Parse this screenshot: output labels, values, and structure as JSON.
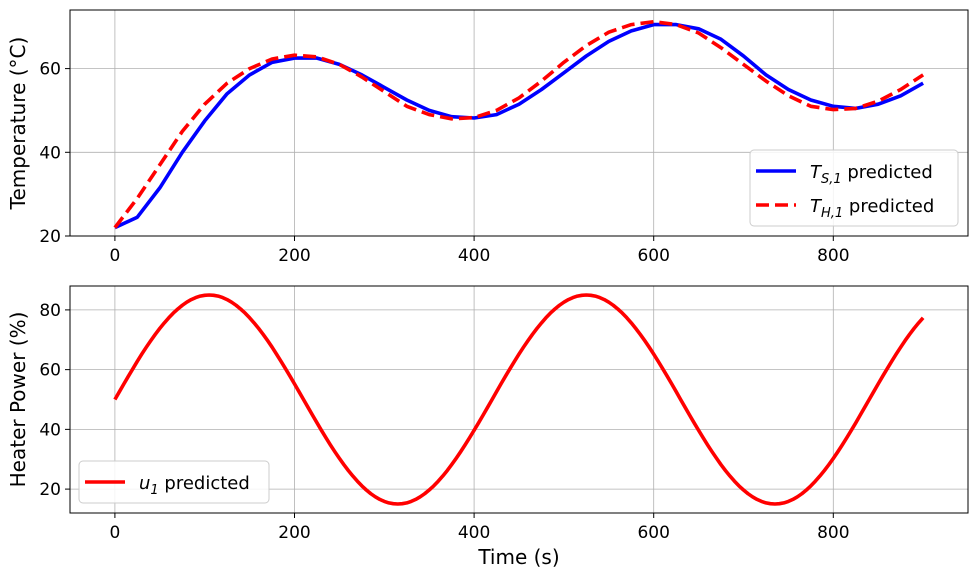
{
  "chart_data": [
    {
      "type": "line",
      "ylabel": "Temperature (°C)",
      "xlabel": "",
      "xlim": [
        -50,
        950
      ],
      "ylim": [
        20,
        74
      ],
      "xticks": [
        0,
        200,
        400,
        600,
        800
      ],
      "yticks": [
        20,
        40,
        60
      ],
      "grid": true,
      "legend_position": "lower-right",
      "series": [
        {
          "name_main": "T",
          "name_sub": "S,1",
          "name_rest": " predicted",
          "color": "#0000ff",
          "style": "solid",
          "x": [
            0,
            25,
            50,
            75,
            100,
            125,
            150,
            175,
            200,
            225,
            250,
            275,
            300,
            325,
            350,
            375,
            400,
            425,
            450,
            475,
            500,
            525,
            550,
            575,
            600,
            625,
            650,
            675,
            700,
            725,
            750,
            775,
            800,
            825,
            850,
            875,
            900
          ],
          "y": [
            22,
            24.5,
            31.5,
            40,
            47.5,
            54,
            58.5,
            61.5,
            62.5,
            62.5,
            61,
            58.5,
            55.5,
            52.5,
            50,
            48.5,
            48.2,
            49,
            51.5,
            55,
            59,
            63,
            66.5,
            69,
            70.5,
            70.5,
            69.5,
            67,
            63,
            58.5,
            55,
            52.5,
            51,
            50.5,
            51.5,
            53.5,
            56.5
          ]
        },
        {
          "name_main": "T",
          "name_sub": "H,1",
          "name_rest": " predicted",
          "color": "#ff0000",
          "style": "dashed",
          "x": [
            0,
            25,
            50,
            75,
            100,
            125,
            150,
            175,
            200,
            225,
            250,
            275,
            300,
            325,
            350,
            375,
            400,
            425,
            450,
            475,
            500,
            525,
            550,
            575,
            600,
            625,
            650,
            675,
            700,
            725,
            750,
            775,
            800,
            825,
            850,
            875,
            900
          ],
          "y": [
            22,
            29,
            37,
            45,
            51.5,
            56.5,
            60,
            62.3,
            63.2,
            62.8,
            61,
            58,
            54.5,
            51,
            49,
            48,
            48.3,
            50,
            53,
            57,
            61.5,
            65.5,
            68.7,
            70.5,
            71.2,
            70.5,
            68.5,
            65,
            61,
            57,
            53.5,
            51,
            50.2,
            50.5,
            52.2,
            55,
            58.5
          ]
        }
      ]
    },
    {
      "type": "line",
      "ylabel": "Heater Power (%)",
      "xlabel": "Time (s)",
      "xlim": [
        -50,
        950
      ],
      "ylim": [
        12,
        88
      ],
      "xticks": [
        0,
        200,
        400,
        600,
        800
      ],
      "yticks": [
        20,
        40,
        60,
        80
      ],
      "grid": true,
      "legend_position": "lower-left",
      "series": [
        {
          "name_main": "u",
          "name_sub": "1",
          "name_rest": " predicted",
          "color": "#ff0000",
          "style": "solid",
          "function": "50 + 35*sin(2*pi*t/420)",
          "x_range": [
            0,
            900
          ]
        }
      ]
    }
  ]
}
